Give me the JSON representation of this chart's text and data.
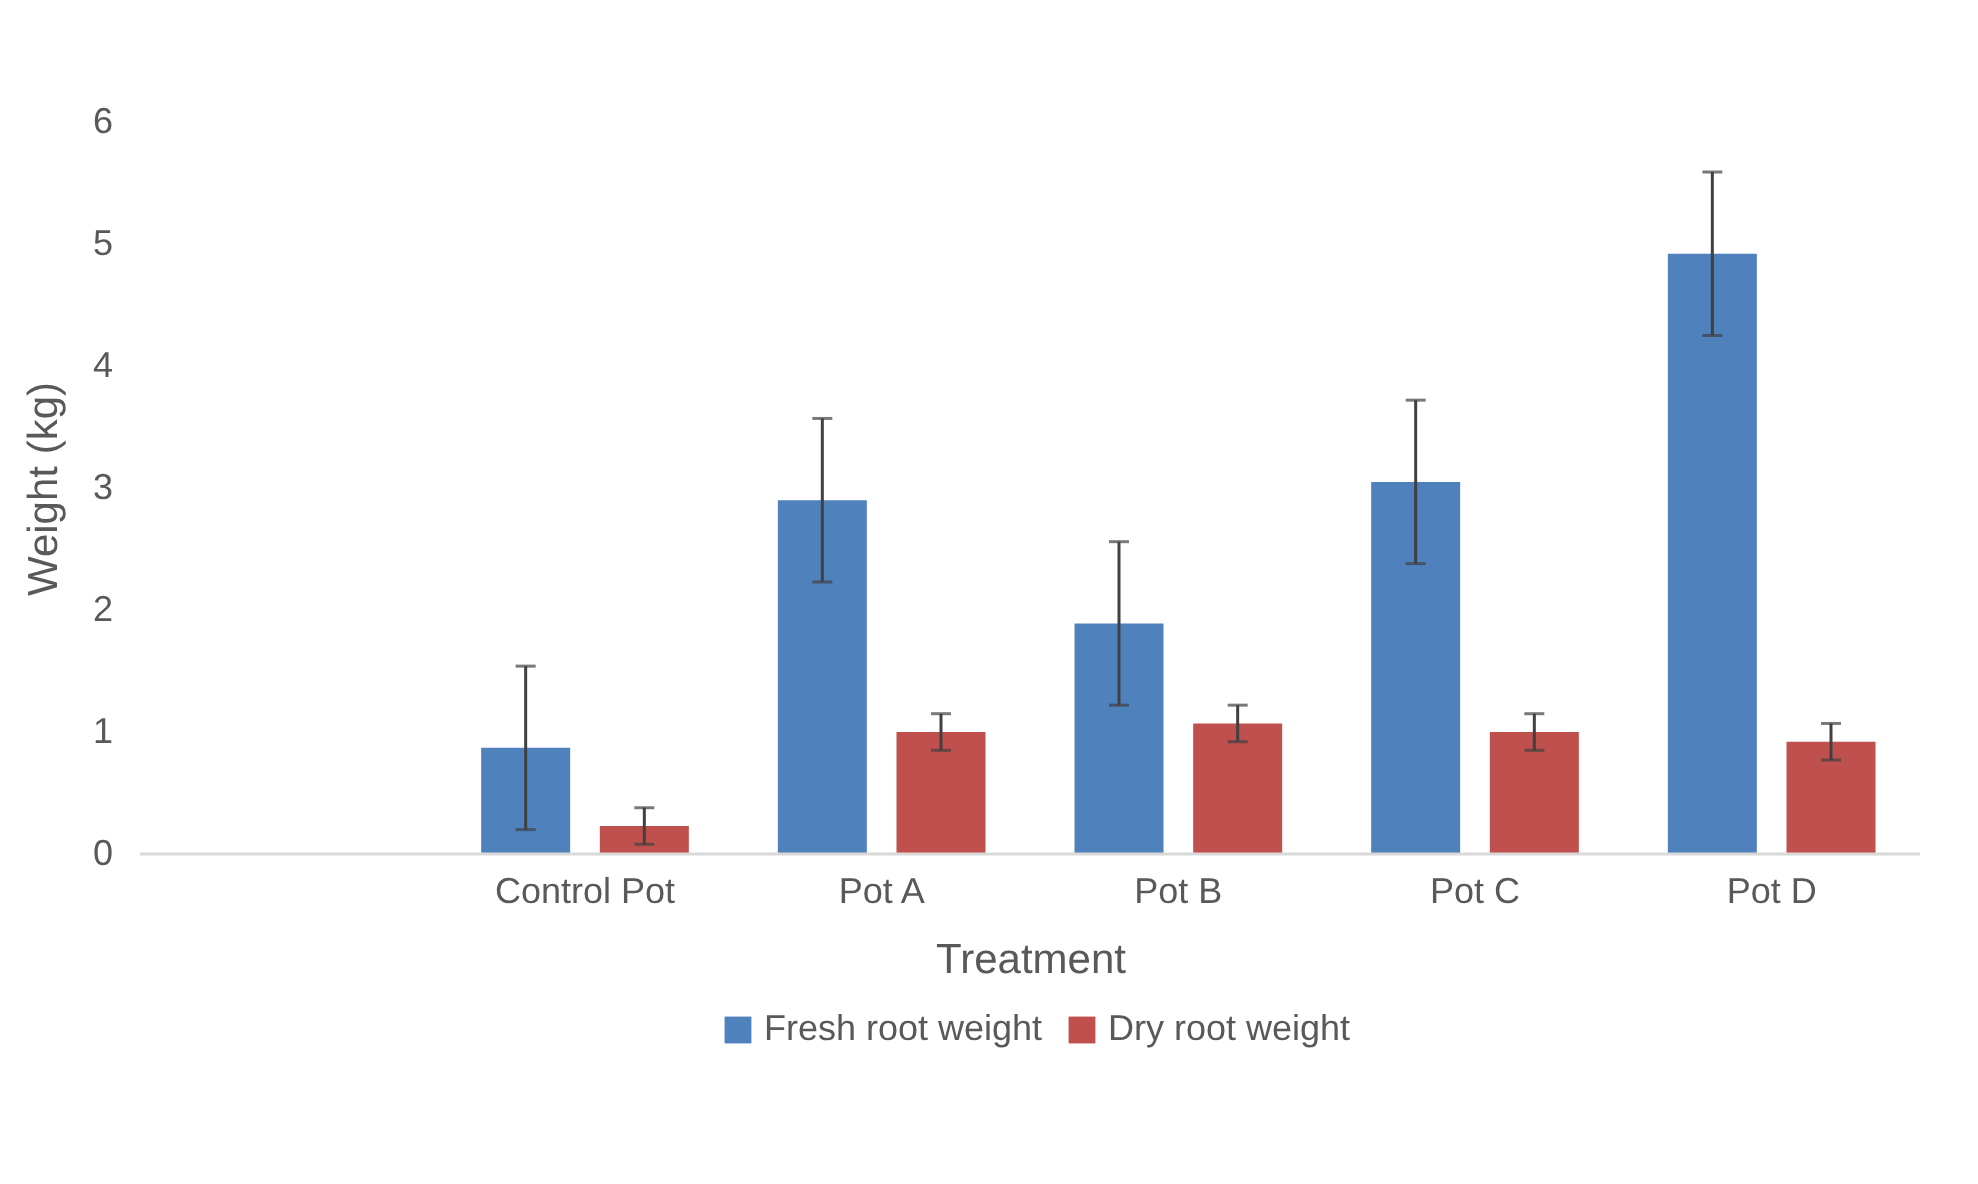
{
  "chart_data": {
    "type": "bar",
    "xlabel": "Treatment",
    "ylabel": "Weight (kg)",
    "categories": [
      null,
      "Control Pot",
      "Pot A",
      "Pot B",
      "Pot C",
      "Pot D"
    ],
    "series": [
      {
        "name": "Fresh root weight",
        "color": "#4f81bd",
        "values": [
          null,
          0.87,
          2.9,
          1.89,
          3.05,
          4.92
        ],
        "errors": [
          null,
          0.67,
          0.67,
          0.67,
          0.67,
          0.67
        ]
      },
      {
        "name": "Dry root weight",
        "color": "#c0504d",
        "values": [
          null,
          0.23,
          1.0,
          1.07,
          1.0,
          0.92
        ],
        "errors": [
          null,
          0.15,
          0.15,
          0.15,
          0.15,
          0.15
        ]
      }
    ],
    "ylim": [
      0,
      6
    ],
    "yticks": [
      0,
      1,
      2,
      3,
      4,
      5,
      6
    ],
    "grid": false,
    "legend": "bottom"
  }
}
